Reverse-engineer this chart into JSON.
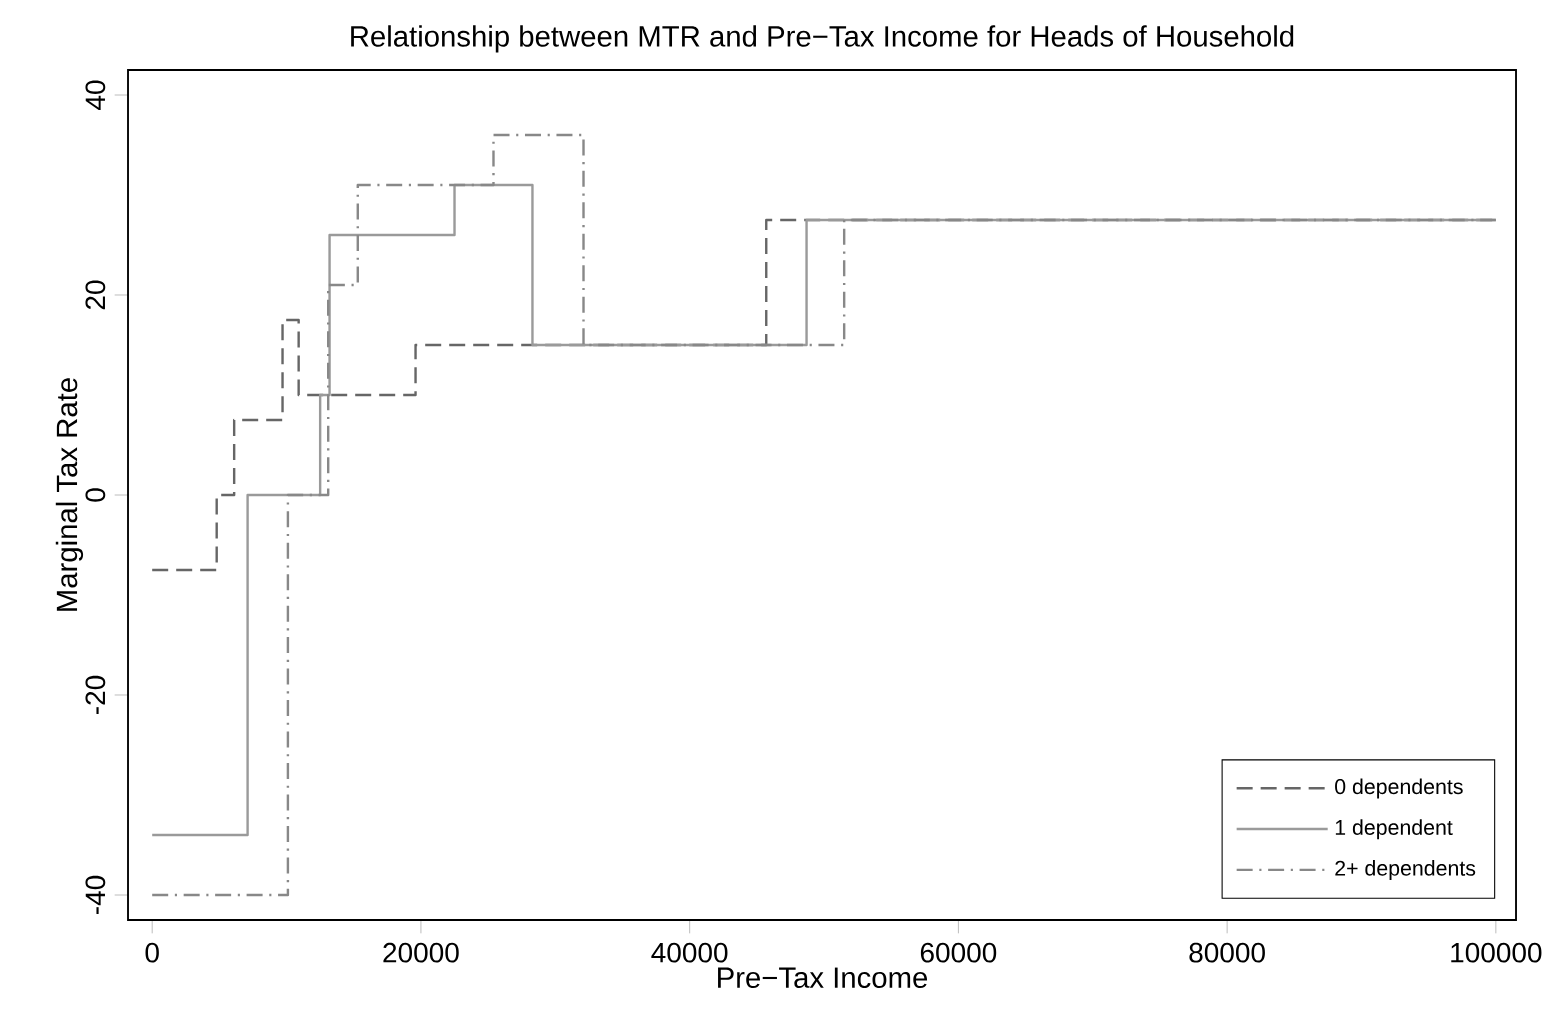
{
  "chart_data": {
    "type": "step",
    "title": "Relationship between MTR and Pre−Tax Income for Heads of Household",
    "xlabel": "Pre−Tax Income",
    "ylabel": "Marginal Tax Rate",
    "xlim": [
      -1800,
      101500
    ],
    "ylim": [
      -42.5,
      42.5
    ],
    "xticks": [
      0,
      20000,
      40000,
      60000,
      80000,
      100000
    ],
    "yticks": [
      -40,
      -20,
      0,
      20,
      40
    ],
    "grid": false,
    "legend": "bottom right",
    "marker": "none",
    "series": [
      {
        "name": "0 dependents",
        "color": "#666666",
        "line_style": "dashed",
        "x": [
          0,
          4800,
          6100,
          9700,
          10900,
          19600,
          45700,
          100000
        ],
        "values": [
          -7.5,
          0,
          7.5,
          17.5,
          10,
          15,
          27.5,
          27.5
        ]
      },
      {
        "name": "1 dependent",
        "color": "#9a9a9a",
        "line_style": "solid",
        "x": [
          0,
          7100,
          12500,
          13200,
          22500,
          28300,
          48700,
          100000
        ],
        "values": [
          -34,
          0,
          10,
          26,
          31,
          15,
          27.5,
          27.5
        ]
      },
      {
        "name": "2+ dependents",
        "color": "#888888",
        "line_style": "dashdot",
        "x": [
          0,
          10100,
          13100,
          15300,
          25400,
          32100,
          51500,
          100000
        ],
        "values": [
          -40,
          0,
          21,
          31,
          36,
          15,
          27.5,
          27.5
        ]
      }
    ]
  }
}
